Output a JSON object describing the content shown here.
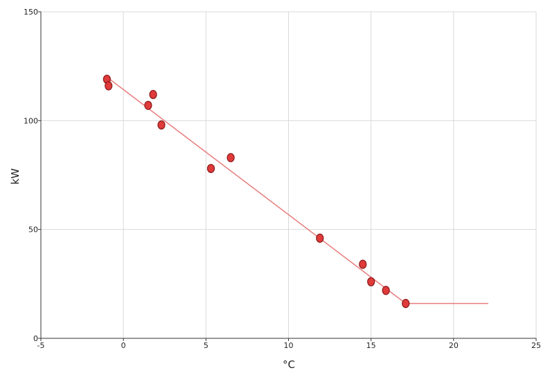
{
  "chart_data": {
    "type": "scatter",
    "title": "",
    "xlabel": "°C",
    "ylabel": "kW",
    "xlim": [
      -5,
      25
    ],
    "ylim": [
      0,
      150
    ],
    "x_ticks": [
      -5,
      0,
      5,
      10,
      15,
      20,
      25
    ],
    "y_ticks": [
      0,
      50,
      100,
      150
    ],
    "grid": true,
    "legend": "none",
    "colors": {
      "point_fill": "#e03a3a",
      "point_stroke": "#8a1a1a",
      "fit_line": "#e87b7b",
      "grid": "#d9d9d9",
      "axis": "#333333"
    },
    "series": [
      {
        "kind": "points",
        "x": [
          -1.0,
          -0.9,
          1.5,
          1.8,
          2.3,
          5.3,
          6.5,
          11.9,
          14.5,
          15.0,
          15.9,
          17.1
        ],
        "y": [
          119,
          116,
          107,
          112,
          98,
          78,
          83,
          46,
          34,
          26,
          22,
          16
        ]
      },
      {
        "kind": "fit_line",
        "x": [
          -1.0,
          17.1,
          22.1
        ],
        "y": [
          120,
          16,
          16
        ]
      }
    ]
  }
}
